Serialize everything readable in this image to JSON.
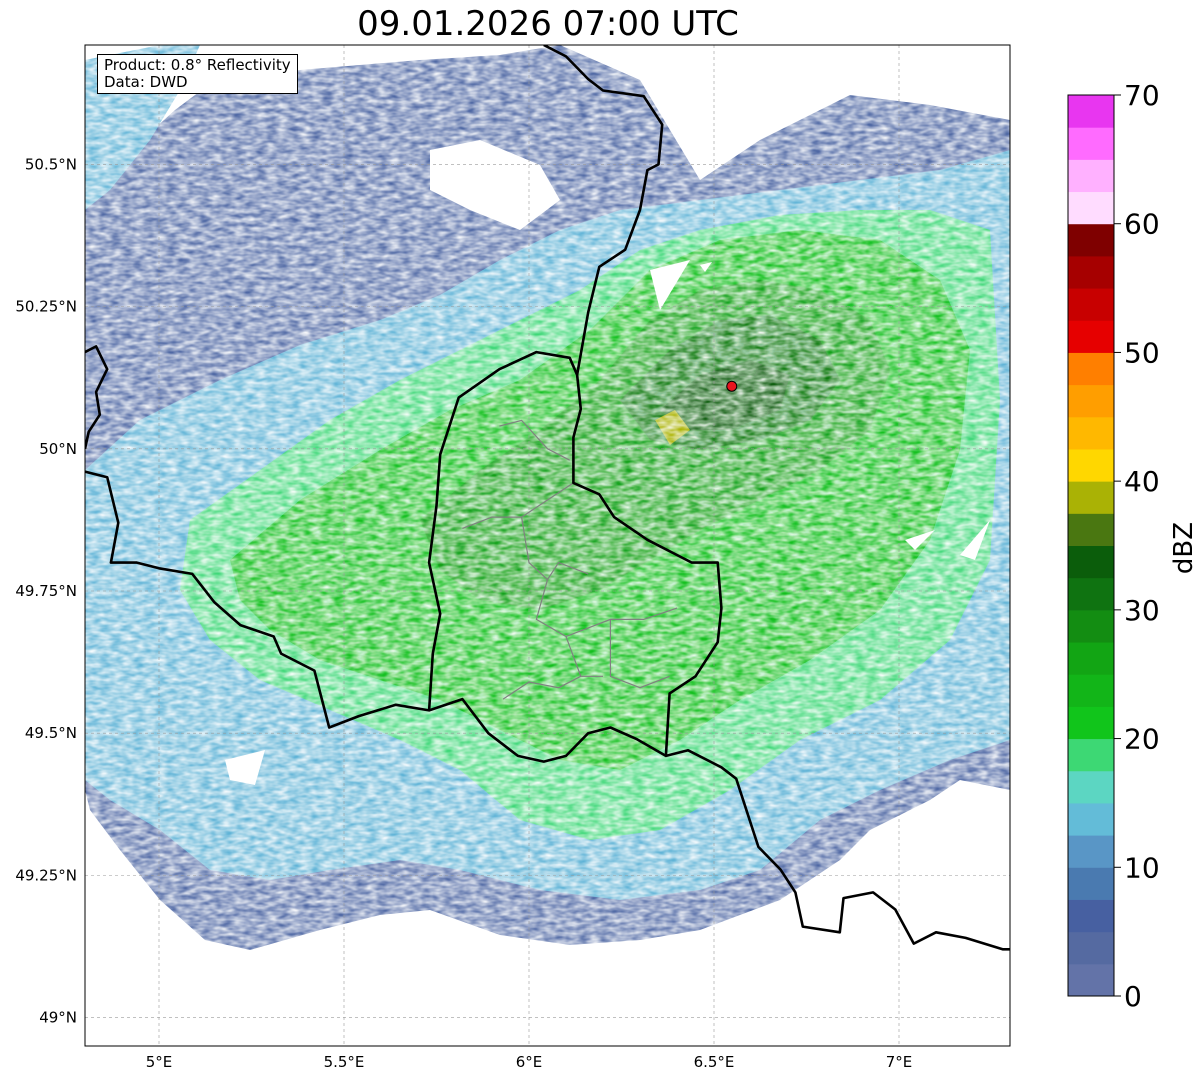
{
  "title": "09.01.2026 07:00 UTC",
  "infobox": {
    "product_line": "Product: 0.8° Reflectivity",
    "data_line": "Data: DWD"
  },
  "map": {
    "lon_range": [
      4.8,
      7.3
    ],
    "lat_range": [
      48.95,
      50.71
    ],
    "lon_ticks": [
      {
        "value": 5.0,
        "label": "5°E"
      },
      {
        "value": 5.5,
        "label": "5.5°E"
      },
      {
        "value": 6.0,
        "label": "6°E"
      },
      {
        "value": 6.5,
        "label": "6.5°E"
      },
      {
        "value": 7.0,
        "label": "7°E"
      }
    ],
    "lat_ticks": [
      {
        "value": 49.0,
        "label": "49°N"
      },
      {
        "value": 49.25,
        "label": "49.25°N"
      },
      {
        "value": 49.5,
        "label": "49.5°N"
      },
      {
        "value": 49.75,
        "label": "49.75°N"
      },
      {
        "value": 50.0,
        "label": "50°N"
      },
      {
        "value": 50.25,
        "label": "50.25°N"
      },
      {
        "value": 50.5,
        "label": "50.5°N"
      }
    ],
    "grid": true,
    "radar_site": {
      "lon": 6.548,
      "lat": 50.11,
      "color": "#e8141e"
    },
    "borders": [
      [
        [
          4.8,
          50.17
        ],
        [
          4.83,
          50.18
        ],
        [
          4.86,
          50.14
        ],
        [
          4.83,
          50.1
        ],
        [
          4.84,
          50.06
        ],
        [
          4.81,
          50.03
        ],
        [
          4.8,
          50.0
        ]
      ],
      [
        [
          4.8,
          49.96
        ],
        [
          4.86,
          49.95
        ],
        [
          4.89,
          49.87
        ],
        [
          4.87,
          49.8
        ],
        [
          4.94,
          49.8
        ],
        [
          5.0,
          49.79
        ],
        [
          5.09,
          49.78
        ],
        [
          5.15,
          49.73
        ],
        [
          5.22,
          49.69
        ],
        [
          5.31,
          49.67
        ],
        [
          5.33,
          49.64
        ],
        [
          5.42,
          49.61
        ],
        [
          5.46,
          49.51
        ],
        [
          5.54,
          49.53
        ],
        [
          5.64,
          49.55
        ],
        [
          5.73,
          49.54
        ],
        [
          5.82,
          49.56
        ],
        [
          5.89,
          49.5
        ],
        [
          5.97,
          49.46
        ],
        [
          6.04,
          49.45
        ],
        [
          6.1,
          49.46
        ],
        [
          6.16,
          49.5
        ],
        [
          6.22,
          49.51
        ],
        [
          6.29,
          49.49
        ],
        [
          6.37,
          49.46
        ],
        [
          6.43,
          49.47
        ],
        [
          6.52,
          49.44
        ],
        [
          6.56,
          49.42
        ],
        [
          6.59,
          49.36
        ],
        [
          6.62,
          49.3
        ],
        [
          6.68,
          49.26
        ],
        [
          6.72,
          49.22
        ],
        [
          6.74,
          49.16
        ],
        [
          6.84,
          49.15
        ],
        [
          6.85,
          49.21
        ],
        [
          6.93,
          49.22
        ],
        [
          6.99,
          49.19
        ],
        [
          7.04,
          49.13
        ],
        [
          7.1,
          49.15
        ],
        [
          7.18,
          49.14
        ],
        [
          7.28,
          49.12
        ],
        [
          7.3,
          49.12
        ]
      ],
      [
        [
          5.73,
          49.54
        ],
        [
          5.74,
          49.64
        ],
        [
          5.76,
          49.71
        ],
        [
          5.73,
          49.8
        ],
        [
          5.75,
          49.9
        ],
        [
          5.76,
          49.99
        ],
        [
          5.81,
          50.09
        ],
        [
          5.92,
          50.14
        ],
        [
          6.02,
          50.17
        ],
        [
          6.11,
          50.16
        ],
        [
          6.13,
          50.13
        ],
        [
          6.14,
          50.07
        ],
        [
          6.12,
          50.02
        ],
        [
          6.12,
          49.94
        ],
        [
          6.19,
          49.92
        ],
        [
          6.23,
          49.88
        ],
        [
          6.32,
          49.84
        ],
        [
          6.44,
          49.8
        ],
        [
          6.51,
          49.8
        ],
        [
          6.52,
          49.72
        ],
        [
          6.51,
          49.66
        ],
        [
          6.45,
          49.6
        ],
        [
          6.38,
          49.57
        ],
        [
          6.37,
          49.46
        ]
      ],
      [
        [
          6.13,
          50.13
        ],
        [
          6.16,
          50.24
        ],
        [
          6.19,
          50.32
        ],
        [
          6.26,
          50.35
        ],
        [
          6.3,
          50.42
        ],
        [
          6.32,
          50.49
        ],
        [
          6.35,
          50.5
        ],
        [
          6.36,
          50.57
        ],
        [
          6.31,
          50.62
        ],
        [
          6.2,
          50.63
        ],
        [
          6.16,
          50.65
        ],
        [
          6.1,
          50.69
        ],
        [
          6.04,
          50.71
        ]
      ]
    ],
    "cantons": [
      [
        [
          5.92,
          50.04
        ],
        [
          5.98,
          50.05
        ],
        [
          6.05,
          50.0
        ],
        [
          6.11,
          49.98
        ]
      ],
      [
        [
          5.82,
          49.86
        ],
        [
          5.9,
          49.88
        ],
        [
          5.98,
          49.88
        ],
        [
          6.05,
          49.91
        ],
        [
          6.12,
          49.94
        ]
      ],
      [
        [
          5.98,
          49.88
        ],
        [
          6.0,
          49.8
        ],
        [
          6.05,
          49.77
        ],
        [
          6.08,
          49.8
        ],
        [
          6.16,
          49.78
        ]
      ],
      [
        [
          6.05,
          49.77
        ],
        [
          6.02,
          49.7
        ],
        [
          6.1,
          49.67
        ],
        [
          6.14,
          49.6
        ],
        [
          6.2,
          49.6
        ]
      ],
      [
        [
          6.1,
          49.67
        ],
        [
          6.22,
          49.7
        ],
        [
          6.31,
          49.7
        ],
        [
          6.4,
          49.72
        ]
      ],
      [
        [
          6.22,
          49.7
        ],
        [
          6.22,
          49.6
        ],
        [
          6.3,
          49.58
        ],
        [
          6.38,
          49.6
        ]
      ],
      [
        [
          5.93,
          49.56
        ],
        [
          6.0,
          49.59
        ],
        [
          6.08,
          49.58
        ],
        [
          6.14,
          49.6
        ]
      ]
    ]
  },
  "colorbar": {
    "label": "dBZ",
    "min": 0,
    "max": 70,
    "ticks": [
      0,
      10,
      20,
      30,
      40,
      50,
      60,
      70
    ],
    "step": 2.5,
    "colors": [
      "#6373a8",
      "#556aa1",
      "#4760a1",
      "#4a7ab0",
      "#5996c6",
      "#63bcd8",
      "#5cd6c2",
      "#3dd874",
      "#11c51b",
      "#12b518",
      "#12a514",
      "#138d12",
      "#0f7311",
      "#0b5d0b",
      "#4a7711",
      "#aab205",
      "#ffd700",
      "#ffb800",
      "#ff9e00",
      "#ff7f00",
      "#e60000",
      "#c80000",
      "#a60000",
      "#7f0000",
      "#ffdcff",
      "#ffb1ff",
      "#ff6bff",
      "#e836f0"
    ]
  }
}
